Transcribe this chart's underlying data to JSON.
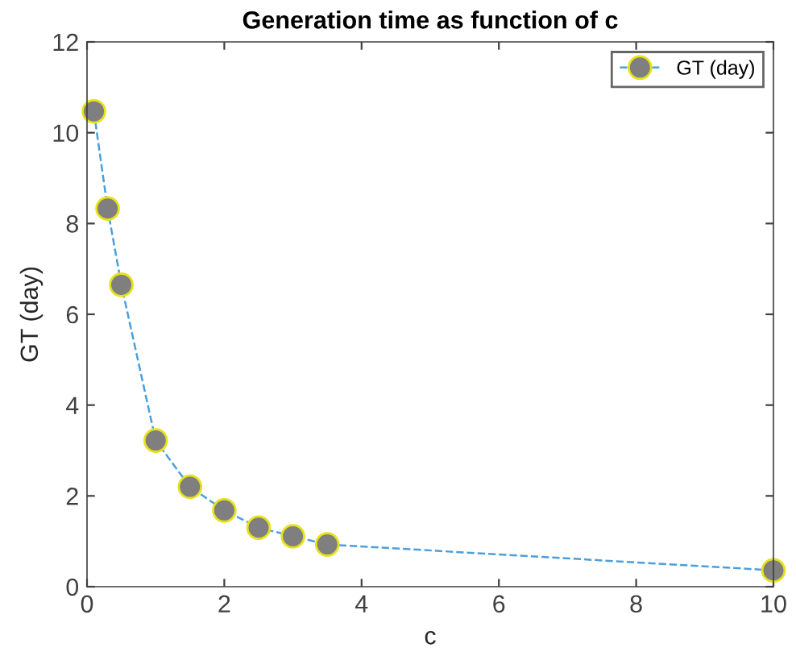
{
  "chart_data": {
    "type": "line",
    "title": "Generation time as function of c",
    "xlabel": "c",
    "ylabel": "GT (day)",
    "x": [
      0.1,
      0.3,
      0.5,
      1,
      1.5,
      2,
      2.5,
      3,
      3.5,
      10
    ],
    "series": [
      {
        "name": "GT (day)",
        "color": "#4a9fdc",
        "values": [
          10.47,
          8.33,
          6.65,
          3.22,
          2.2,
          1.68,
          1.3,
          1.11,
          0.93,
          0.36
        ]
      }
    ],
    "xlim": [
      0,
      10
    ],
    "ylim": [
      0,
      12
    ],
    "xticks": [
      0,
      2,
      4,
      6,
      8,
      10
    ],
    "yticks": [
      0,
      2,
      4,
      6,
      8,
      10,
      12
    ],
    "marker": "circle",
    "line_style": "dashed",
    "grid": false,
    "legend": "top right"
  }
}
